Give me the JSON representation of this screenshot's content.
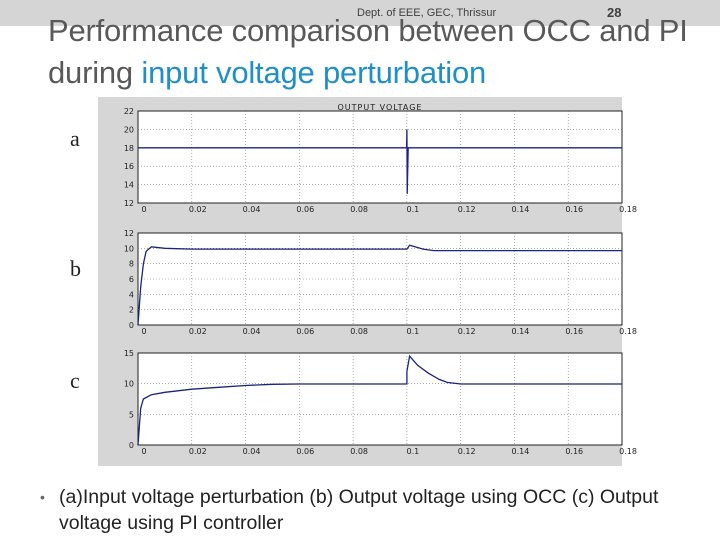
{
  "header": {
    "dept": "Dept. of EEE, GEC, Thrissur",
    "slide_number": "28"
  },
  "title": {
    "line1": "Performance comparison between OCC and PI",
    "line2_plain": "during ",
    "line2_highlight": "input voltage perturbation"
  },
  "panel_labels": [
    "a",
    "b",
    "c"
  ],
  "colors": {
    "trace": "#1a237e",
    "title_highlight": "#1e8fc8",
    "title_text": "#595959"
  },
  "chart_data": [
    {
      "type": "line",
      "title": "OUTPUT VOLTAGE",
      "x": [
        0,
        0.02,
        0.04,
        0.06,
        0.08,
        0.0999,
        0.1,
        0.1001,
        0.1005,
        0.12,
        0.14,
        0.16,
        0.18
      ],
      "y": [
        18,
        18,
        18,
        18,
        18,
        18,
        20,
        13,
        18,
        18,
        18,
        18,
        18
      ],
      "xlim": [
        0,
        0.18
      ],
      "ylim": [
        12,
        22
      ],
      "xticks": [
        "0",
        "0.02",
        "0.04",
        "0.06",
        "0.08",
        "0.1",
        "0.12",
        "0.14",
        "0.16",
        "0.18"
      ],
      "yticks": [
        "12",
        "14",
        "16",
        "18",
        "20",
        "22"
      ],
      "grid": true
    },
    {
      "type": "line",
      "x": [
        0,
        0.001,
        0.002,
        0.003,
        0.005,
        0.01,
        0.02,
        0.05,
        0.098,
        0.1,
        0.101,
        0.103,
        0.106,
        0.11,
        0.14,
        0.18
      ],
      "y": [
        0,
        5,
        8,
        9.6,
        10.2,
        10.0,
        9.9,
        9.9,
        9.9,
        9.9,
        10.4,
        10.2,
        9.9,
        9.7,
        9.7,
        9.7
      ],
      "xlim": [
        0,
        0.18
      ],
      "ylim": [
        0,
        12
      ],
      "xticks": [
        "0",
        "0.02",
        "0.04",
        "0.06",
        "0.08",
        "0.1",
        "0.12",
        "0.14",
        "0.16",
        "0.18"
      ],
      "yticks": [
        "0",
        "2",
        "4",
        "6",
        "8",
        "10",
        "12"
      ],
      "grid": true
    },
    {
      "type": "line",
      "x": [
        0,
        0.001,
        0.002,
        0.005,
        0.01,
        0.02,
        0.03,
        0.04,
        0.05,
        0.06,
        0.1,
        0.1,
        0.101,
        0.104,
        0.108,
        0.112,
        0.115,
        0.12,
        0.14,
        0.18
      ],
      "y": [
        0,
        6,
        7.5,
        8.2,
        8.6,
        9.1,
        9.4,
        9.7,
        9.9,
        9.95,
        9.95,
        12,
        14.5,
        13,
        11.7,
        10.7,
        10.2,
        9.95,
        9.95,
        9.95
      ],
      "xlim": [
        0,
        0.18
      ],
      "ylim": [
        0,
        15
      ],
      "xticks": [
        "0",
        "0.02",
        "0.04",
        "0.06",
        "0.08",
        "0.1",
        "0.12",
        "0.14",
        "0.16",
        "0.18"
      ],
      "yticks": [
        "0",
        "5",
        "10",
        "15"
      ],
      "grid": true
    }
  ],
  "caption": "(a)Input voltage perturbation (b) Output voltage using OCC  (c) Output voltage using PI controller"
}
